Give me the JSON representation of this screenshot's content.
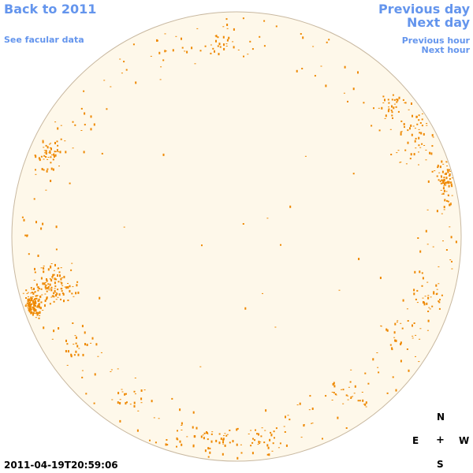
{
  "nav": {
    "back_label": "Back to 2011",
    "facular_label": "See facular data",
    "prev_day_label": "Previous day",
    "next_day_label": "Next day",
    "prev_hour_label": "Previous hour",
    "next_hour_label": "Next hour"
  },
  "compass": {
    "north": "N",
    "east": "E",
    "center": "+",
    "west": "W",
    "south": "S"
  },
  "timestamp": "2011-04-19T20:59:06",
  "colors": {
    "link": "#6495ed",
    "disk_fill": "#fef8ea",
    "disk_edge": "#c8b8a0",
    "feature": "#ee8800"
  },
  "features": {
    "type": "facular/magnetic point features on solar disk",
    "clusters": [
      {
        "region": "east-limb",
        "density": "high"
      },
      {
        "region": "north-east",
        "density": "medium"
      },
      {
        "region": "west-limb",
        "density": "high"
      },
      {
        "region": "north-west",
        "density": "medium"
      },
      {
        "region": "south-limb",
        "density": "medium"
      }
    ]
  }
}
